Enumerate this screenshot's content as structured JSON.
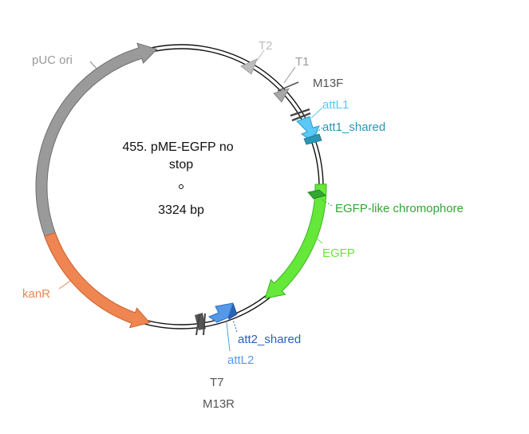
{
  "plasmid": {
    "name_line1": "455. pME-EGFP no",
    "name_line2": "stop",
    "length": "3324 bp"
  },
  "features": [
    {
      "id": "puc-ori",
      "label": "pUC ori",
      "color": "#9a9a9a",
      "type": "arrow"
    },
    {
      "id": "t2",
      "label": "T2",
      "color": "#bcbcbc",
      "type": "terminator"
    },
    {
      "id": "t1",
      "label": "T1",
      "color": "#9a9a9a",
      "type": "terminator"
    },
    {
      "id": "m13f",
      "label": "M13F",
      "color": "#555555",
      "type": "primer"
    },
    {
      "id": "attl1",
      "label": "attL1",
      "color": "#5bc8f5",
      "type": "arrow"
    },
    {
      "id": "att1-shared",
      "label": "att1_shared",
      "color": "#2a96b5",
      "type": "site"
    },
    {
      "id": "chromophore",
      "label": "EGFP-like chromophore",
      "color": "#33a633",
      "type": "site"
    },
    {
      "id": "egfp",
      "label": "EGFP",
      "color": "#66e83a",
      "type": "arrow"
    },
    {
      "id": "att2-shared",
      "label": "att2_shared",
      "color": "#2a62b8",
      "type": "site"
    },
    {
      "id": "attl2",
      "label": "attL2",
      "color": "#5599e8",
      "type": "arrow"
    },
    {
      "id": "t7",
      "label": "T7",
      "color": "#555555",
      "type": "primer"
    },
    {
      "id": "m13r",
      "label": "M13R",
      "color": "#555555",
      "type": "primer"
    },
    {
      "id": "kanr",
      "label": "kanR",
      "color": "#ef8550",
      "type": "arrow"
    }
  ]
}
